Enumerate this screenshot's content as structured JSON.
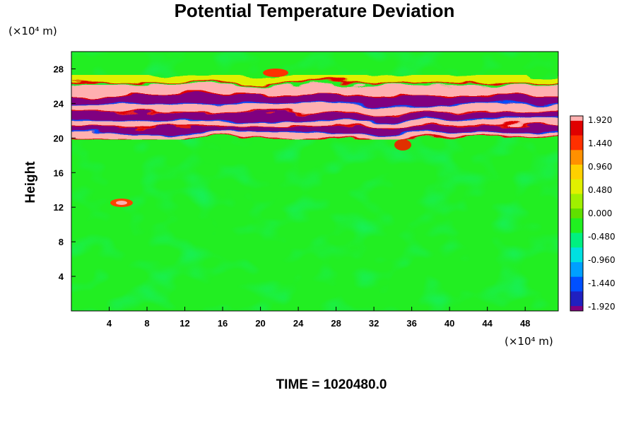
{
  "chart_data": {
    "type": "heatmap",
    "title": "Potential Temperature Deviation",
    "ylabel": "Height",
    "x_unit_label": "(×10⁴ m)",
    "y_unit_label": "(×10⁴ m)",
    "xlim": [
      0,
      51.5
    ],
    "ylim": [
      0,
      30
    ],
    "x_ticks": [
      4,
      8,
      12,
      16,
      20,
      24,
      28,
      32,
      36,
      40,
      44,
      48
    ],
    "y_ticks": [
      4,
      8,
      12,
      16,
      20,
      24,
      28
    ],
    "time_label": "TIME = 1020480.0",
    "colorbar": {
      "min": -1.92,
      "max": 1.92,
      "tick_labels": [
        "1.920",
        "1.440",
        "0.960",
        "0.480",
        "0.000",
        "-0.480",
        "-0.960",
        "-1.440",
        "-1.920"
      ],
      "colors": [
        "#800080",
        "#2020c0",
        "#0050ff",
        "#00a0ff",
        "#00e0e0",
        "#00f080",
        "#20f020",
        "#60e000",
        "#a0f000",
        "#e0f000",
        "#ffd000",
        "#ff9000",
        "#ff3000",
        "#e00000",
        "#ffb0b0"
      ]
    },
    "bands": [
      {
        "y": 20.2,
        "value": 1.92
      },
      {
        "y": 20.9,
        "value": -1.92
      },
      {
        "y": 21.7,
        "value": 1.92
      },
      {
        "y": 22.5,
        "value": -1.92
      },
      {
        "y": 23.4,
        "value": 1.92
      },
      {
        "y": 24.4,
        "value": -1.92
      },
      {
        "y": 25.5,
        "value": 1.92
      },
      {
        "y": 26.8,
        "value": 0.6
      }
    ],
    "background_value": 0.0
  }
}
